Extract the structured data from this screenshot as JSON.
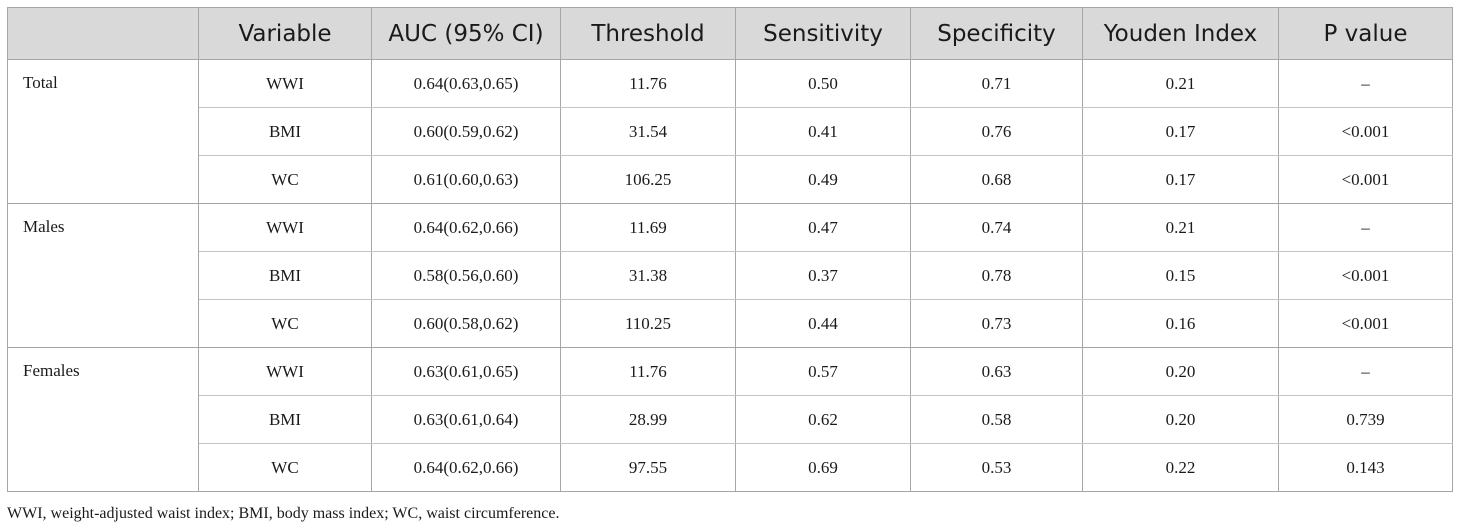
{
  "table": {
    "headers": [
      "",
      "Variable",
      "AUC (95% CI)",
      "Threshold",
      "Sensitivity",
      "Specificity",
      "Youden Index",
      "P value"
    ],
    "groups": [
      {
        "label": "Total",
        "rows": [
          [
            "WWI",
            "0.64(0.63,0.65)",
            "11.76",
            "0.50",
            "0.71",
            "0.21",
            "–"
          ],
          [
            "BMI",
            "0.60(0.59,0.62)",
            "31.54",
            "0.41",
            "0.76",
            "0.17",
            "<0.001"
          ],
          [
            "WC",
            "0.61(0.60,0.63)",
            "106.25",
            "0.49",
            "0.68",
            "0.17",
            "<0.001"
          ]
        ]
      },
      {
        "label": "Males",
        "rows": [
          [
            "WWI",
            "0.64(0.62,0.66)",
            "11.69",
            "0.47",
            "0.74",
            "0.21",
            "–"
          ],
          [
            "BMI",
            "0.58(0.56,0.60)",
            "31.38",
            "0.37",
            "0.78",
            "0.15",
            "<0.001"
          ],
          [
            "WC",
            "0.60(0.58,0.62)",
            "110.25",
            "0.44",
            "0.73",
            "0.16",
            "<0.001"
          ]
        ]
      },
      {
        "label": "Females",
        "rows": [
          [
            "WWI",
            "0.63(0.61,0.65)",
            "11.76",
            "0.57",
            "0.63",
            "0.20",
            "–"
          ],
          [
            "BMI",
            "0.63(0.61,0.64)",
            "28.99",
            "0.62",
            "0.58",
            "0.20",
            "0.739"
          ],
          [
            "WC",
            "0.64(0.62,0.66)",
            "97.55",
            "0.69",
            "0.53",
            "0.22",
            "0.143"
          ]
        ]
      }
    ]
  },
  "footnote": "WWI, weight-adjusted waist index; BMI, body mass index; WC, waist circumference.",
  "colors": {
    "header_bg": "#d9d9d9",
    "border": "#a6a6a6"
  }
}
